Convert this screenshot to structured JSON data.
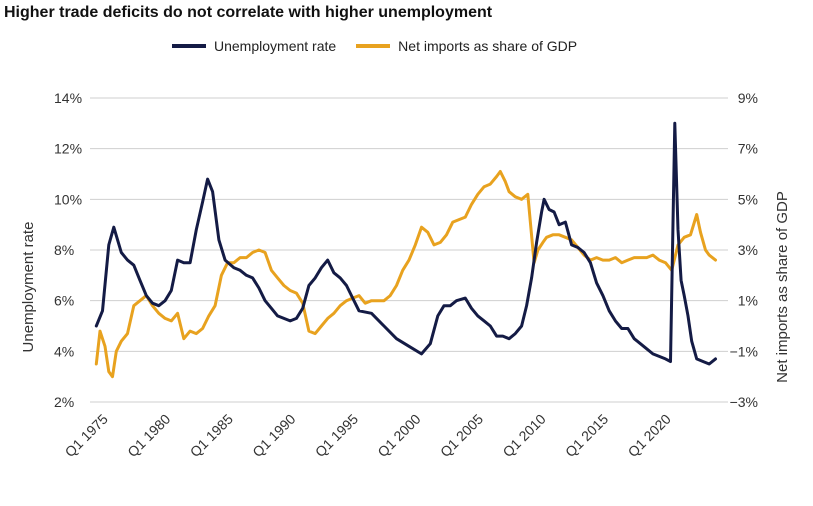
{
  "colors": {
    "unemployment": "#141b45",
    "net_imports": "#e8a21f",
    "grid": "#cfcfcf"
  },
  "chart_data": {
    "type": "line",
    "title": "Higher trade deficits do not correlate with higher unemployment",
    "legend_placement": "top",
    "grid": true,
    "x_tick_labels": [
      "Q1 1975",
      "Q1 1980",
      "Q1 1985",
      "Q1 1990",
      "Q1 1995",
      "Q1 2000",
      "Q1 2005",
      "Q1 2010",
      "Q1 2015",
      "Q1 2020"
    ],
    "x_tick_years": [
      1975,
      1980,
      1985,
      1990,
      1995,
      2000,
      2005,
      2010,
      2015,
      2020
    ],
    "xlim": [
      1973.5,
      2024.5
    ],
    "left_axis": {
      "label": "Unemployment rate",
      "ylim": [
        2,
        14
      ],
      "ticks": [
        2,
        4,
        6,
        8,
        10,
        12,
        14
      ],
      "tick_labels": [
        "2%",
        "4%",
        "6%",
        "8%",
        "10%",
        "12%",
        "14%"
      ]
    },
    "right_axis": {
      "label": "Net imports as share of GDP",
      "ylim": [
        -3,
        9
      ],
      "ticks": [
        -3,
        -1,
        1,
        3,
        5,
        7,
        9
      ],
      "tick_labels": [
        "−3%",
        "−1%",
        "1%",
        "3%",
        "5%",
        "7%",
        "9%"
      ]
    },
    "series": [
      {
        "name": "Unemployment rate",
        "axis": "left",
        "x": [
          1974.0,
          1974.5,
          1975.0,
          1975.4,
          1976.0,
          1976.5,
          1977.0,
          1977.5,
          1978.0,
          1978.5,
          1979.0,
          1979.5,
          1980.0,
          1980.5,
          1981.0,
          1981.5,
          1982.0,
          1982.5,
          1982.9,
          1983.3,
          1983.8,
          1984.3,
          1985.0,
          1985.5,
          1986.0,
          1986.5,
          1987.0,
          1987.5,
          1988.0,
          1988.5,
          1989.0,
          1989.5,
          1990.0,
          1990.5,
          1991.0,
          1991.5,
          1992.0,
          1992.5,
          1993.0,
          1993.5,
          1994.0,
          1994.5,
          1995.0,
          1996.0,
          1997.0,
          1998.0,
          1999.0,
          2000.0,
          2000.7,
          2001.3,
          2001.8,
          2002.3,
          2002.8,
          2003.5,
          2004.0,
          2004.5,
          2005.0,
          2005.5,
          2006.0,
          2006.5,
          2007.0,
          2007.5,
          2008.0,
          2008.4,
          2008.8,
          2009.2,
          2009.6,
          2009.8,
          2010.2,
          2010.6,
          2011.0,
          2011.5,
          2012.0,
          2012.5,
          2013.0,
          2013.5,
          2014.0,
          2014.5,
          2015.0,
          2015.5,
          2016.0,
          2016.5,
          2017.0,
          2017.5,
          2018.0,
          2018.5,
          2019.0,
          2019.5,
          2019.9,
          2020.25,
          2020.5,
          2020.75,
          2021.0,
          2021.3,
          2021.6,
          2022.0,
          2022.5,
          2023.0,
          2023.5
        ],
        "values": [
          5.0,
          5.6,
          8.2,
          8.9,
          7.9,
          7.6,
          7.4,
          6.8,
          6.2,
          5.9,
          5.8,
          6.0,
          6.4,
          7.6,
          7.5,
          7.5,
          8.8,
          9.9,
          10.8,
          10.3,
          8.4,
          7.6,
          7.3,
          7.2,
          7.0,
          6.9,
          6.5,
          6.0,
          5.7,
          5.4,
          5.3,
          5.2,
          5.3,
          5.7,
          6.6,
          6.9,
          7.3,
          7.6,
          7.1,
          6.9,
          6.6,
          6.1,
          5.6,
          5.5,
          5.0,
          4.5,
          4.2,
          3.9,
          4.3,
          5.4,
          5.8,
          5.8,
          6.0,
          6.1,
          5.7,
          5.4,
          5.2,
          5.0,
          4.6,
          4.6,
          4.5,
          4.7,
          5.0,
          5.8,
          6.9,
          8.3,
          9.5,
          10.0,
          9.6,
          9.5,
          9.0,
          9.1,
          8.2,
          8.1,
          7.9,
          7.5,
          6.7,
          6.2,
          5.6,
          5.2,
          4.9,
          4.9,
          4.5,
          4.3,
          4.1,
          3.9,
          3.8,
          3.7,
          3.6,
          13.0,
          8.8,
          6.8,
          6.2,
          5.4,
          4.4,
          3.7,
          3.6,
          3.5,
          3.7
        ]
      },
      {
        "name": "Net imports as share of GDP",
        "axis": "right",
        "x": [
          1974.0,
          1974.3,
          1974.7,
          1975.0,
          1975.3,
          1975.6,
          1976.0,
          1976.5,
          1977.0,
          1977.5,
          1978.0,
          1978.5,
          1979.0,
          1979.5,
          1980.0,
          1980.5,
          1981.0,
          1981.5,
          1982.0,
          1982.5,
          1983.0,
          1983.5,
          1984.0,
          1984.5,
          1985.0,
          1985.5,
          1986.0,
          1986.5,
          1987.0,
          1987.5,
          1988.0,
          1988.5,
          1989.0,
          1989.5,
          1990.0,
          1990.5,
          1991.0,
          1991.5,
          1992.0,
          1992.5,
          1993.0,
          1993.5,
          1994.0,
          1994.5,
          1995.0,
          1995.5,
          1996.0,
          1996.5,
          1997.0,
          1997.5,
          1998.0,
          1998.5,
          1999.0,
          1999.5,
          2000.0,
          2000.5,
          2001.0,
          2001.5,
          2002.0,
          2002.5,
          2003.0,
          2003.5,
          2004.0,
          2004.5,
          2005.0,
          2005.5,
          2006.0,
          2006.3,
          2006.7,
          2007.0,
          2007.5,
          2008.0,
          2008.5,
          2009.0,
          2009.3,
          2009.7,
          2010.0,
          2010.5,
          2011.0,
          2011.5,
          2012.0,
          2012.5,
          2013.0,
          2013.5,
          2014.0,
          2014.5,
          2015.0,
          2015.5,
          2016.0,
          2016.5,
          2017.0,
          2017.5,
          2018.0,
          2018.5,
          2019.0,
          2019.5,
          2020.0,
          2020.5,
          2021.0,
          2021.5,
          2022.0,
          2022.3,
          2022.7,
          2023.0,
          2023.5
        ],
        "values": [
          -1.5,
          -0.2,
          -0.8,
          -1.8,
          -2.0,
          -1.0,
          -0.6,
          -0.3,
          0.8,
          1.0,
          1.2,
          0.8,
          0.5,
          0.3,
          0.2,
          0.5,
          -0.5,
          -0.2,
          -0.3,
          -0.1,
          0.4,
          0.8,
          2.0,
          2.5,
          2.5,
          2.7,
          2.7,
          2.9,
          3.0,
          2.9,
          2.2,
          1.9,
          1.6,
          1.4,
          1.3,
          0.9,
          -0.2,
          -0.3,
          0.0,
          0.3,
          0.5,
          0.8,
          1.0,
          1.1,
          1.2,
          0.9,
          1.0,
          1.0,
          1.0,
          1.2,
          1.6,
          2.2,
          2.6,
          3.2,
          3.9,
          3.7,
          3.2,
          3.3,
          3.6,
          4.1,
          4.2,
          4.3,
          4.8,
          5.2,
          5.5,
          5.6,
          5.9,
          6.1,
          5.7,
          5.3,
          5.1,
          5.0,
          5.2,
          2.5,
          3.0,
          3.3,
          3.5,
          3.6,
          3.6,
          3.5,
          3.4,
          3.1,
          2.8,
          2.6,
          2.7,
          2.6,
          2.6,
          2.7,
          2.5,
          2.6,
          2.7,
          2.7,
          2.7,
          2.8,
          2.6,
          2.5,
          2.2,
          3.2,
          3.5,
          3.6,
          4.4,
          3.7,
          3.0,
          2.8,
          2.6
        ]
      }
    ]
  }
}
